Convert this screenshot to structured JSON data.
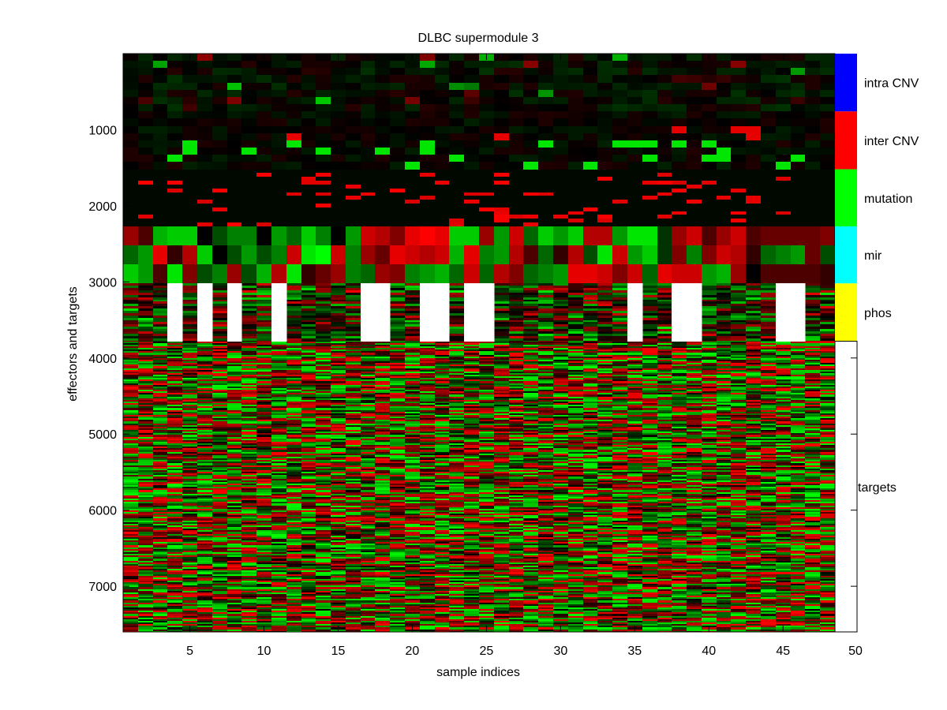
{
  "chart_data": {
    "type": "heatmap",
    "title": "DLBC supermodule 3",
    "xlabel": "sample indices",
    "ylabel": "effectors and targets",
    "x_ticks": [
      5,
      10,
      15,
      20,
      25,
      30,
      35,
      40,
      45,
      50
    ],
    "y_ticks": [
      1000,
      2000,
      3000,
      4000,
      5000,
      6000,
      7000
    ],
    "xlim": [
      0.5,
      48.5
    ],
    "ylim": [
      0,
      7600
    ],
    "y_reversed": true,
    "n_samples": 48,
    "colormap": {
      "negative": "#00ff00",
      "zero": "#000000",
      "positive": "#ff0000"
    },
    "missing_color": "#ffffff",
    "categories": [
      {
        "label": "intra CNV",
        "color": "#0000ff",
        "y_start": 0,
        "y_end": 760
      },
      {
        "label": "inter CNV",
        "color": "#ff0000",
        "y_start": 760,
        "y_end": 1520
      },
      {
        "label": "mutation",
        "color": "#00ff00",
        "y_start": 1520,
        "y_end": 2270
      },
      {
        "label": "mir",
        "color": "#00ffff",
        "y_start": 2270,
        "y_end": 3020
      },
      {
        "label": "phos",
        "color": "#ffff00",
        "y_start": 3020,
        "y_end": 3780
      },
      {
        "label": "targets",
        "color": "#ffffff",
        "y_start": 3780,
        "y_end": 7600
      }
    ],
    "sidebar_ticks": [
      4000,
      5000,
      6000,
      7000,
      7600
    ],
    "phos_missing_samples": [
      4,
      6,
      8,
      11,
      17,
      18,
      21,
      22,
      24,
      25,
      35,
      38,
      39,
      45,
      46
    ],
    "mir_rows_y": [
      2270,
      2520,
      2770,
      3020
    ],
    "mir_values": [
      [
        0.6,
        0.3,
        -0.7,
        -0.8,
        -0.8,
        0.0,
        -0.3,
        -0.5,
        -0.5,
        0.0,
        -0.6,
        -0.4,
        -0.8,
        -0.5,
        0.0,
        -0.6,
        0.8,
        0.7,
        0.5,
        0.9,
        1.0,
        0.9,
        -0.8,
        -0.8,
        0.6,
        -0.6,
        0.8,
        -0.4,
        -0.8,
        -0.6,
        -0.8,
        0.7,
        0.7,
        -0.6,
        -0.9,
        -0.9,
        -0.2,
        0.6,
        0.8,
        0.3,
        0.6,
        0.8,
        0.3,
        0.4,
        0.4,
        0.4,
        0.4,
        0.5
      ],
      [
        -0.4,
        -0.6,
        0.9,
        0.2,
        0.7,
        -0.8,
        0.0,
        -0.3,
        -0.6,
        -0.3,
        -0.5,
        0.8,
        -0.9,
        -1.0,
        0.8,
        -0.5,
        0.6,
        0.4,
        0.9,
        0.8,
        0.7,
        0.8,
        -0.7,
        0.9,
        -0.5,
        -0.6,
        0.7,
        0.3,
        -0.4,
        0.2,
        0.7,
        -0.3,
        -0.9,
        0.8,
        -0.6,
        -0.8,
        -0.2,
        0.5,
        -0.5,
        0.5,
        0.8,
        0.7,
        0.2,
        -0.4,
        -0.5,
        -0.6,
        0.4,
        -0.3
      ],
      [
        -0.8,
        -0.6,
        0.3,
        -0.9,
        0.5,
        -0.3,
        -0.5,
        0.6,
        -0.3,
        -0.7,
        0.7,
        -0.9,
        0.2,
        0.4,
        0.6,
        -0.5,
        -0.4,
        0.6,
        0.5,
        -0.5,
        -0.6,
        -0.7,
        -0.4,
        0.8,
        -0.4,
        0.7,
        0.5,
        -0.4,
        -0.5,
        -0.6,
        0.9,
        0.9,
        0.8,
        0.5,
        0.8,
        -0.4,
        0.9,
        0.8,
        0.8,
        -0.6,
        -0.7,
        0.6,
        0.0,
        0.3,
        0.3,
        0.3,
        0.3,
        0.2
      ]
    ]
  }
}
